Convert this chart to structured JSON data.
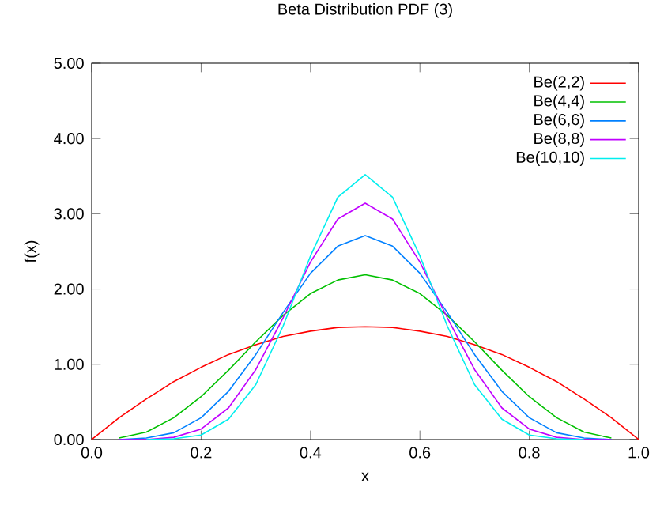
{
  "chart_data": {
    "type": "line",
    "title": "Beta Distribution PDF (3)",
    "xlabel": "x",
    "ylabel": "f(x)",
    "x": [
      0,
      0.05,
      0.1,
      0.15,
      0.2,
      0.25,
      0.3,
      0.35,
      0.4,
      0.45,
      0.5,
      0.55,
      0.6,
      0.65,
      0.7,
      0.75,
      0.8,
      0.85,
      0.9,
      0.95,
      1
    ],
    "series": [
      {
        "name": "Be(2,2)",
        "color": "#ff0000",
        "values": [
          0,
          0.29,
          0.54,
          0.77,
          0.96,
          1.13,
          1.26,
          1.37,
          1.44,
          1.49,
          1.5,
          1.49,
          1.44,
          1.37,
          1.26,
          1.13,
          0.96,
          0.77,
          0.54,
          0.29,
          0
        ]
      },
      {
        "name": "Be(4,4)",
        "color": "#00c000",
        "values": [
          null,
          0.02,
          0.1,
          0.29,
          0.57,
          0.92,
          1.3,
          1.65,
          1.94,
          2.12,
          2.19,
          2.12,
          1.94,
          1.65,
          1.3,
          0.92,
          0.57,
          0.29,
          0.1,
          0.02,
          null
        ]
      },
      {
        "name": "Be(6,6)",
        "color": "#0080ff",
        "values": [
          null,
          0,
          0.02,
          0.09,
          0.29,
          0.64,
          1.13,
          1.69,
          2.21,
          2.57,
          2.71,
          2.57,
          2.21,
          1.69,
          1.13,
          0.64,
          0.29,
          0.09,
          0.02,
          0,
          null
        ]
      },
      {
        "name": "Be(8,8)",
        "color": "#c000ff",
        "values": [
          null,
          0,
          0,
          0.03,
          0.14,
          0.42,
          0.93,
          1.62,
          2.36,
          2.93,
          3.14,
          2.93,
          2.36,
          1.62,
          0.93,
          0.42,
          0.14,
          0.03,
          0,
          0,
          null
        ]
      },
      {
        "name": "Be(10,10)",
        "color": "#00eeee",
        "values": [
          null,
          null,
          0,
          0.01,
          0.06,
          0.27,
          0.73,
          1.51,
          2.44,
          3.22,
          3.52,
          3.22,
          2.44,
          1.51,
          0.73,
          0.27,
          0.06,
          0.01,
          0,
          null,
          null
        ]
      }
    ],
    "xlim": [
      0,
      1
    ],
    "ylim": [
      0,
      5
    ],
    "xticks": [
      {
        "value": 0,
        "label": "0.0"
      },
      {
        "value": 0.2,
        "label": "0.2"
      },
      {
        "value": 0.4,
        "label": "0.4"
      },
      {
        "value": 0.6,
        "label": "0.6"
      },
      {
        "value": 0.8,
        "label": "0.8"
      },
      {
        "value": 1,
        "label": "1.0"
      }
    ],
    "yticks": [
      {
        "value": 0,
        "label": "0.00"
      },
      {
        "value": 1,
        "label": "1.00"
      },
      {
        "value": 2,
        "label": "2.00"
      },
      {
        "value": 3,
        "label": "3.00"
      },
      {
        "value": 4,
        "label": "4.00"
      },
      {
        "value": 5,
        "label": "5.00"
      }
    ],
    "legend": "top right",
    "grid": false,
    "marker": "none",
    "line_style": "solid"
  }
}
